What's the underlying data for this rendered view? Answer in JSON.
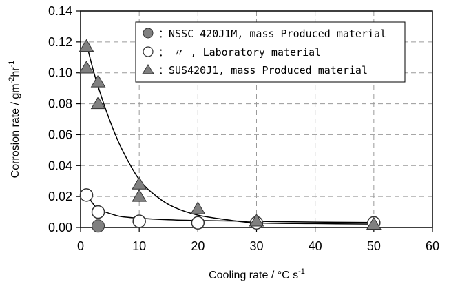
{
  "chart_data": {
    "type": "scatter",
    "xlabel": "Cooling rate / °C s",
    "xlabel_sup": "-1",
    "ylabel": "Corrosion rate / gm",
    "ylabel_sup1": "-2",
    "ylabel_mid": "hr",
    "ylabel_sup2": "-1",
    "xlim": [
      0,
      60
    ],
    "ylim": [
      0,
      0.14
    ],
    "x_ticks": [
      "0",
      "10",
      "20",
      "30",
      "40",
      "50",
      "60"
    ],
    "y_ticks": [
      "0.00",
      "0.02",
      "0.04",
      "0.06",
      "0.08",
      "0.10",
      "0.12",
      "0.14"
    ],
    "grid": true,
    "legend_position": "top-right",
    "series": [
      {
        "name": "：NSSC 420J1M, mass Produced material",
        "marker": "circle-filled",
        "color": "#808080",
        "points": [
          [
            3,
            0.001
          ]
        ]
      },
      {
        "name": "：　〃 , Laboratory material",
        "marker": "circle-open",
        "color": "#ffffff",
        "points": [
          [
            1,
            0.021
          ],
          [
            3,
            0.01
          ],
          [
            10,
            0.004
          ],
          [
            20,
            0.003
          ],
          [
            30,
            0.003
          ],
          [
            50,
            0.003
          ]
        ]
      },
      {
        "name": "：SUS420J1, mass Produced material",
        "marker": "triangle-filled",
        "color": "#808080",
        "points": [
          [
            1,
            0.117
          ],
          [
            1,
            0.103
          ],
          [
            3,
            0.094
          ],
          [
            3,
            0.08
          ],
          [
            10,
            0.028
          ],
          [
            10,
            0.02
          ],
          [
            20,
            0.012
          ],
          [
            30,
            0.004
          ],
          [
            50,
            0.002
          ]
        ]
      }
    ],
    "fit_curves": [
      {
        "points": [
          [
            1,
            0.119
          ],
          [
            2,
            0.104
          ],
          [
            3,
            0.091
          ],
          [
            5,
            0.069
          ],
          [
            7,
            0.051
          ],
          [
            10,
            0.031
          ],
          [
            13,
            0.02
          ],
          [
            16,
            0.013
          ],
          [
            20,
            0.008
          ],
          [
            25,
            0.005
          ],
          [
            30,
            0.003
          ],
          [
            40,
            0.0025
          ],
          [
            50,
            0.0022
          ]
        ]
      },
      {
        "points": [
          [
            1,
            0.022
          ],
          [
            2,
            0.016
          ],
          [
            3,
            0.012
          ],
          [
            5,
            0.009
          ],
          [
            7,
            0.007
          ],
          [
            10,
            0.006
          ],
          [
            15,
            0.005
          ],
          [
            20,
            0.0045
          ],
          [
            30,
            0.004
          ],
          [
            40,
            0.0035
          ],
          [
            50,
            0.0032
          ]
        ]
      }
    ]
  }
}
